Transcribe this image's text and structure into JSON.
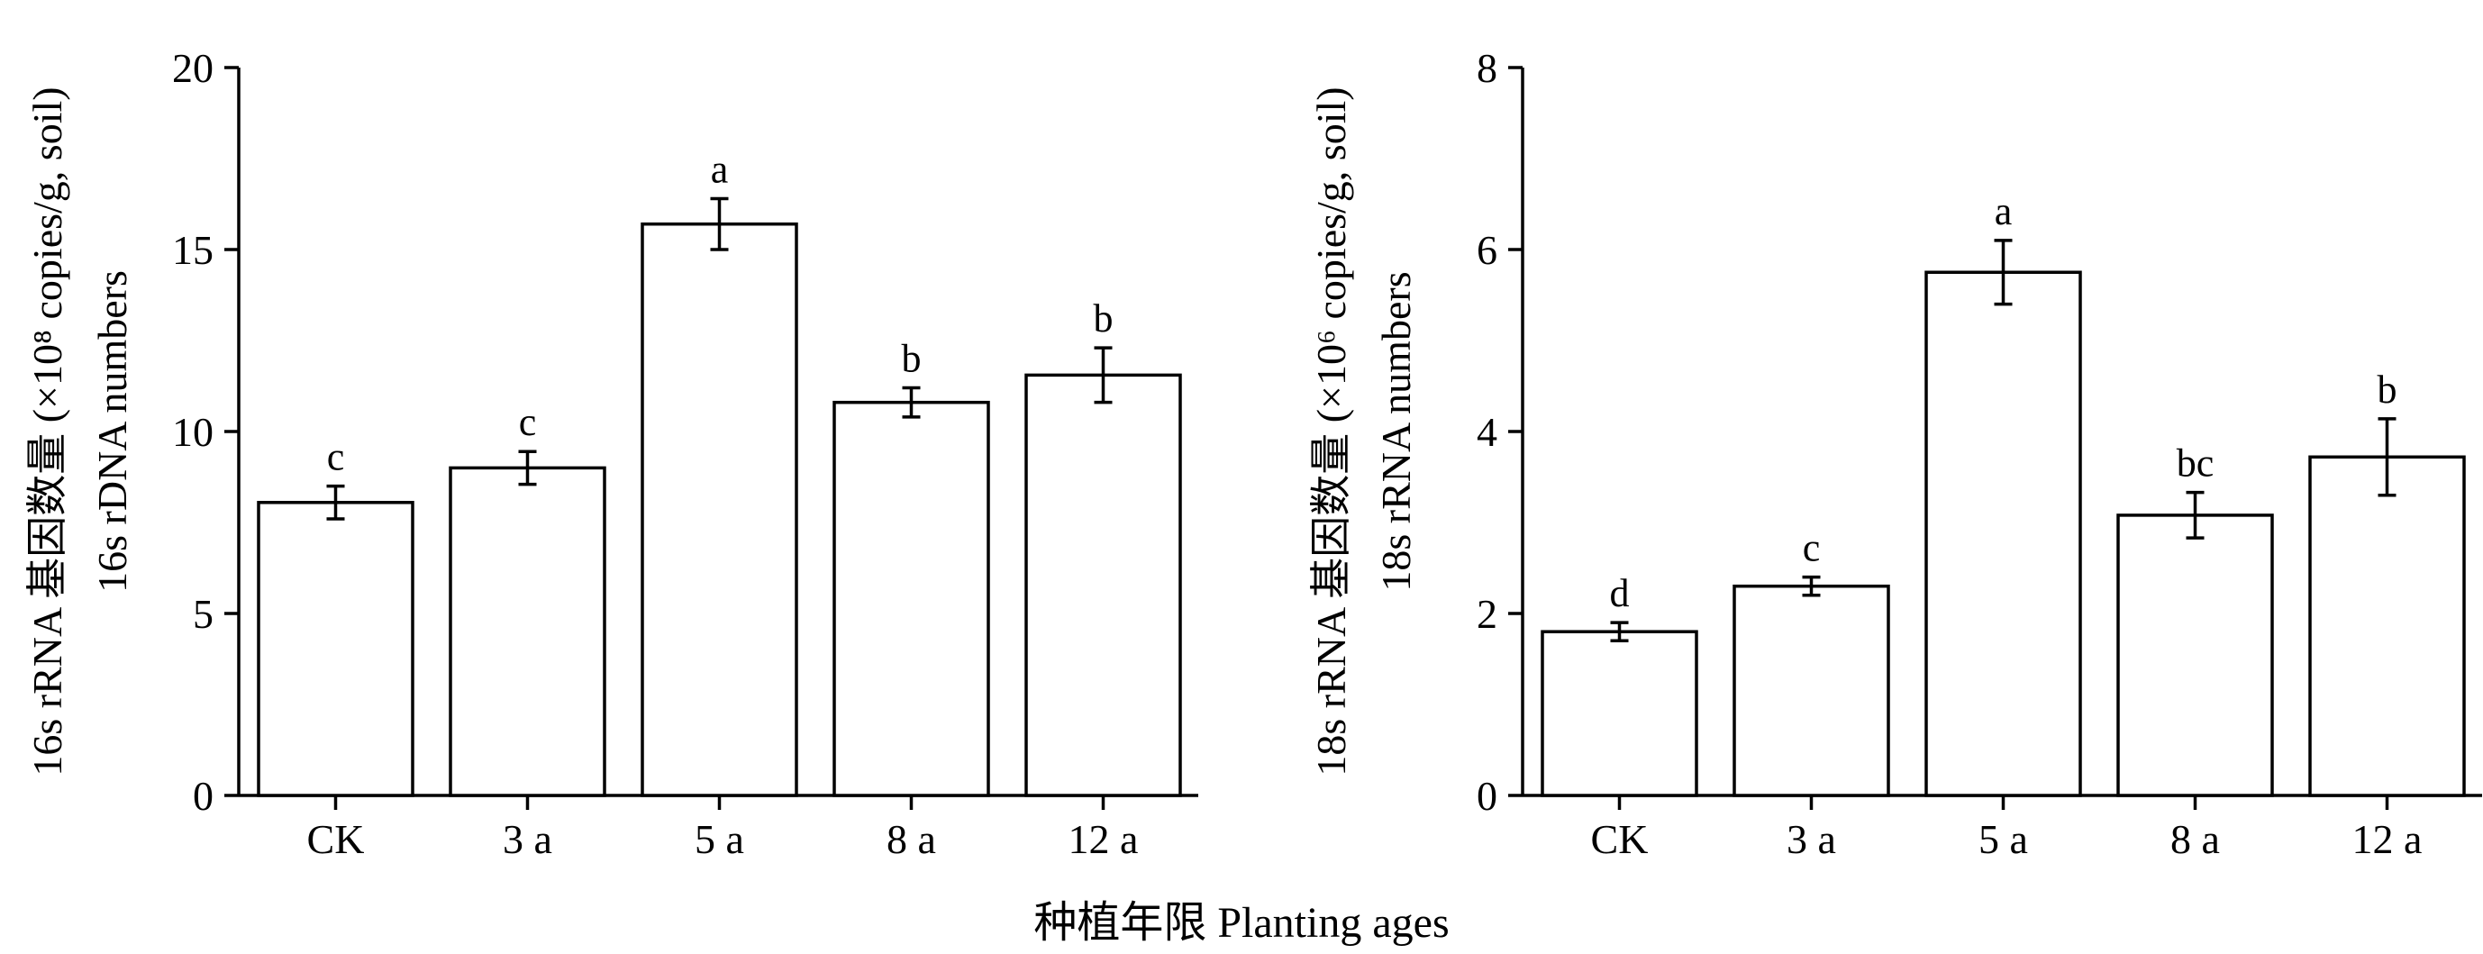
{
  "shared_xlabel": "种植年限 Planting ages",
  "chart_data": [
    {
      "type": "bar",
      "categories": [
        "CK",
        "3 a",
        "5 a",
        "8 a",
        "12 a"
      ],
      "values": [
        8.05,
        9.0,
        15.7,
        10.8,
        11.55
      ],
      "errors": [
        0.45,
        0.45,
        0.7,
        0.4,
        0.75
      ],
      "significance": [
        "c",
        "c",
        "a",
        "b",
        "b"
      ],
      "ylim": [
        0,
        20
      ],
      "yticks": [
        0,
        5,
        10,
        15,
        20
      ],
      "ytick_labels": [
        "0",
        "5",
        "10",
        "15",
        "20"
      ],
      "ylabel_line1": "16s rRNA 基因数量 (×10⁸ copies/g, soil)",
      "ylabel_line2": "16s rDNA numbers",
      "grid": false,
      "bar_fill": "#ffffff",
      "bar_stroke": "#000000"
    },
    {
      "type": "bar",
      "categories": [
        "CK",
        "3 a",
        "5 a",
        "8 a",
        "12 a"
      ],
      "values": [
        1.8,
        2.3,
        5.75,
        3.08,
        3.72
      ],
      "errors": [
        0.1,
        0.1,
        0.35,
        0.25,
        0.42
      ],
      "significance": [
        "d",
        "c",
        "a",
        "bc",
        "b"
      ],
      "ylim": [
        0,
        8
      ],
      "yticks": [
        0,
        2,
        4,
        6,
        8
      ],
      "ytick_labels": [
        "0",
        "2",
        "4",
        "6",
        "8"
      ],
      "ylabel_line1": "18s rRNA 基因数量 (×10⁶ copies/g, soil)",
      "ylabel_line2": "18s rRNA numbers",
      "grid": false,
      "bar_fill": "#ffffff",
      "bar_stroke": "#000000"
    }
  ]
}
